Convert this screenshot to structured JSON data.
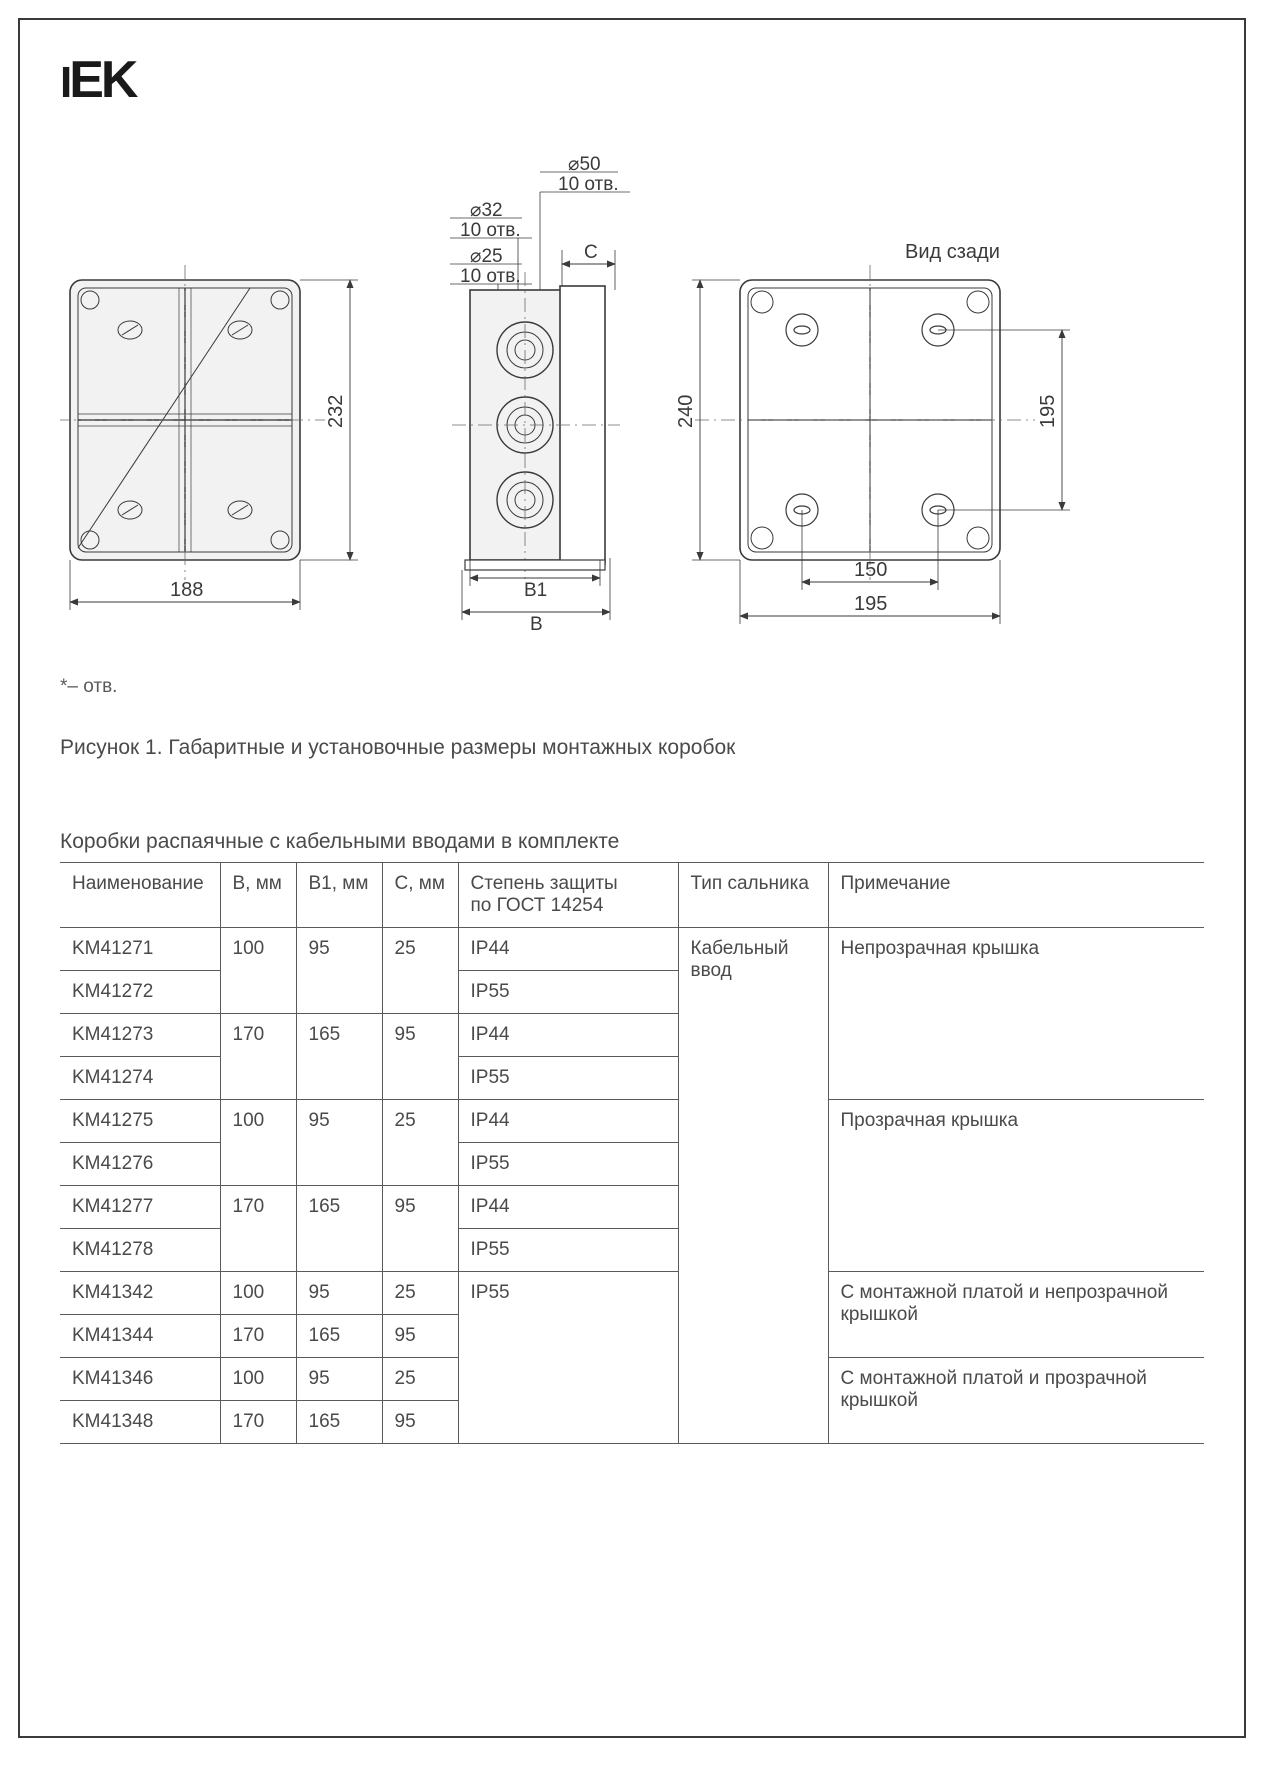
{
  "logo": "IEK",
  "diagram": {
    "colors": {
      "stroke": "#3a3a3a",
      "fill_box": "#f0f0f0",
      "text": "#3a3a3a",
      "thin": "#6a6a6a"
    },
    "view1": {
      "dim_h": "232",
      "dim_w": "188"
    },
    "view2": {
      "labels": [
        {
          "top": "⌀50",
          "bot": "10 отв."
        },
        {
          "top": "⌀32",
          "bot": "10 отв."
        },
        {
          "top": "⌀25",
          "bot": "10 отв."
        }
      ],
      "dim_c": "C",
      "dim_b1": "B1",
      "dim_b": "B"
    },
    "view3": {
      "title": "Вид сзади",
      "dim_h_outer": "240",
      "dim_h_inner": "195",
      "dim_w_inner": "150",
      "dim_w_outer": "195"
    }
  },
  "footnote": "*– отв.",
  "caption": "Рисунок 1. Габаритные и установочные размеры монтажных коробок",
  "table_title": "Коробки распаячные с кабельными вводами в комплекте",
  "table": {
    "headers": [
      "Наименование",
      "B, мм",
      "B1, мм",
      "C, мм",
      "Степень защиты по ГОСТ 14254",
      "Тип сальника",
      "Примечание"
    ],
    "col_widths": [
      "160px",
      "76px",
      "86px",
      "76px",
      "220px",
      "150px",
      "auto"
    ],
    "gland_type": "Кабельный ввод",
    "rows": [
      {
        "name": "KM41271",
        "b": "100",
        "b1": "95",
        "c": "25",
        "ip": "IP44",
        "note": "Непрозрачная крышка",
        "b_span": 2,
        "b1_span": 2,
        "c_span": 2,
        "note_span": 4,
        "gland_span": 12
      },
      {
        "name": "KM41272",
        "ip": "IP55"
      },
      {
        "name": "KM41273",
        "b": "170",
        "b1": "165",
        "c": "95",
        "ip": "IP44",
        "b_span": 2,
        "b1_span": 2,
        "c_span": 2
      },
      {
        "name": "KM41274",
        "ip": "IP55"
      },
      {
        "name": "KM41275",
        "b": "100",
        "b1": "95",
        "c": "25",
        "ip": "IP44",
        "note": "Прозрачная крышка",
        "b_span": 2,
        "b1_span": 2,
        "c_span": 2,
        "note_span": 4
      },
      {
        "name": "KM41276",
        "ip": "IP55"
      },
      {
        "name": "KM41277",
        "b": "170",
        "b1": "165",
        "c": "95",
        "ip": "IP44",
        "b_span": 2,
        "b1_span": 2,
        "c_span": 2
      },
      {
        "name": "KM41278",
        "ip": "IP55"
      },
      {
        "name": "KM41342",
        "b": "100",
        "b1": "95",
        "c": "25",
        "ip": "IP55",
        "ip_span": 4,
        "note": "С монтажной платой и непрозрачной крышкой",
        "note_span": 2
      },
      {
        "name": "KM41344",
        "b": "170",
        "b1": "165",
        "c": "95"
      },
      {
        "name": "KM41346",
        "b": "100",
        "b1": "95",
        "c": "25",
        "note": "С монтажной платой и прозрачной крышкой",
        "note_span": 2
      },
      {
        "name": "KM41348",
        "b": "170",
        "b1": "165",
        "c": "95"
      }
    ]
  }
}
